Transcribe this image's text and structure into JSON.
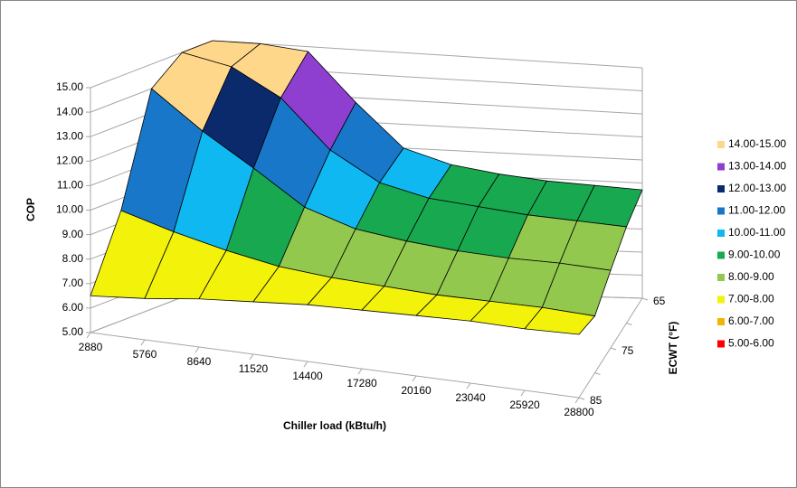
{
  "chart_data": {
    "type": "surface",
    "y_label": "COP",
    "x_label": "Chiller load  (kBtu/h)",
    "z_label": "ECWT (°F)",
    "categories": [
      2880,
      5760,
      8640,
      11520,
      14400,
      17280,
      20160,
      23040,
      25920,
      28800
    ],
    "series": [
      {
        "name": "65",
        "values": [
          15.0,
          15.0,
          14.8,
          12.8,
          11.0,
          10.4,
          10.1,
          9.9,
          9.8,
          9.7
        ]
      },
      {
        "name": null,
        "values": [
          15.0,
          14.6,
          13.5,
          11.5,
          10.3,
          9.8,
          9.6,
          9.4,
          9.3,
          9.2
        ]
      },
      {
        "name": "75",
        "values": [
          14.0,
          12.5,
          11.2,
          9.8,
          9.1,
          8.8,
          8.6,
          8.5,
          8.5,
          8.4
        ]
      },
      {
        "name": null,
        "values": [
          9.5,
          8.9,
          8.4,
          8.0,
          7.8,
          7.7,
          7.6,
          7.6,
          7.6,
          7.5
        ]
      },
      {
        "name": "85",
        "values": [
          6.5,
          6.7,
          7.0,
          7.2,
          7.4,
          7.5,
          7.6,
          7.7,
          7.7,
          7.8
        ]
      }
    ],
    "ylim": [
      5,
      15
    ],
    "yticks": [
      {
        "value": 5,
        "label": "5.00"
      },
      {
        "value": 6,
        "label": "6.00"
      },
      {
        "value": 7,
        "label": "7.00"
      },
      {
        "value": 8,
        "label": "8.00"
      },
      {
        "value": 9,
        "label": "9.00"
      },
      {
        "value": 10,
        "label": "10.00"
      },
      {
        "value": 11,
        "label": "11.00"
      },
      {
        "value": 12,
        "label": "12.00"
      },
      {
        "value": 13,
        "label": "13.00"
      },
      {
        "value": 14,
        "label": "14.00"
      },
      {
        "value": 15,
        "label": "15.00"
      }
    ],
    "grid": true,
    "legend_position": "right",
    "legend": [
      {
        "name": "14.00-15.00",
        "color": "#ffd78b"
      },
      {
        "name": "13.00-14.00",
        "color": "#8e3fd0"
      },
      {
        "name": "12.00-13.00",
        "color": "#0b2a6b"
      },
      {
        "name": "11.00-12.00",
        "color": "#1877c9"
      },
      {
        "name": "10.00-11.00",
        "color": "#10b8f2"
      },
      {
        "name": "9.00-10.00",
        "color": "#18a850"
      },
      {
        "name": "8.00-9.00",
        "color": "#92c84e"
      },
      {
        "name": "7.00-8.00",
        "color": "#f2f20a"
      },
      {
        "name": "6.00-7.00",
        "color": "#f2b400"
      },
      {
        "name": "5.00-6.00",
        "color": "#ff0000"
      }
    ]
  }
}
